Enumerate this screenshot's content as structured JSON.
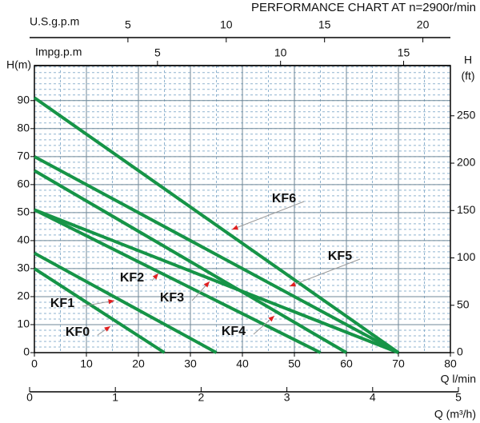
{
  "chart_data": {
    "type": "line",
    "title": "PERFORMANCE CHART AT n=2900r/min",
    "x_label": "Q l/min",
    "y_label": "H(m)",
    "y2_label": [
      "H",
      "(ft)"
    ],
    "xlim": [
      0,
      80
    ],
    "xticks": [
      0,
      10,
      20,
      30,
      40,
      50,
      60,
      70,
      80
    ],
    "ylim": [
      0,
      102.5
    ],
    "yticks": [
      0,
      10,
      20,
      30,
      40,
      50,
      60,
      70,
      80,
      90
    ],
    "y2lim": [
      0,
      303
    ],
    "y2ticks": [
      0,
      50,
      100,
      150,
      200,
      250
    ],
    "grid": true,
    "line_color": "#169447",
    "top_axes": [
      {
        "label": "U.S.g.p.m",
        "xlim": [
          0,
          21.4
        ],
        "xticks": [
          5,
          10,
          15,
          20
        ]
      },
      {
        "label": "Impg.p.m",
        "xlim": [
          0,
          16.9
        ],
        "xticks": [
          5,
          10,
          15
        ]
      }
    ],
    "bottom_axis": {
      "label": "Q (m³/h)",
      "xlim": [
        0,
        5
      ],
      "xticks": [
        0,
        1,
        2,
        3,
        4,
        5
      ]
    },
    "series": [
      {
        "name": "KF0",
        "x": [
          0,
          25
        ],
        "values": [
          30,
          0
        ]
      },
      {
        "name": "KF1",
        "x": [
          0,
          35
        ],
        "values": [
          35.5,
          0
        ]
      },
      {
        "name": "KF2",
        "x": [
          0,
          55
        ],
        "values": [
          51,
          0
        ]
      },
      {
        "name": "KF3",
        "x": [
          0,
          70
        ],
        "values": [
          51,
          0
        ]
      },
      {
        "name": "KF4",
        "x": [
          0,
          60
        ],
        "values": [
          65,
          0
        ]
      },
      {
        "name": "KF5",
        "x": [
          0,
          70
        ],
        "values": [
          70,
          0
        ]
      },
      {
        "name": "KF6",
        "x": [
          0,
          70
        ],
        "values": [
          91,
          0
        ]
      }
    ]
  }
}
